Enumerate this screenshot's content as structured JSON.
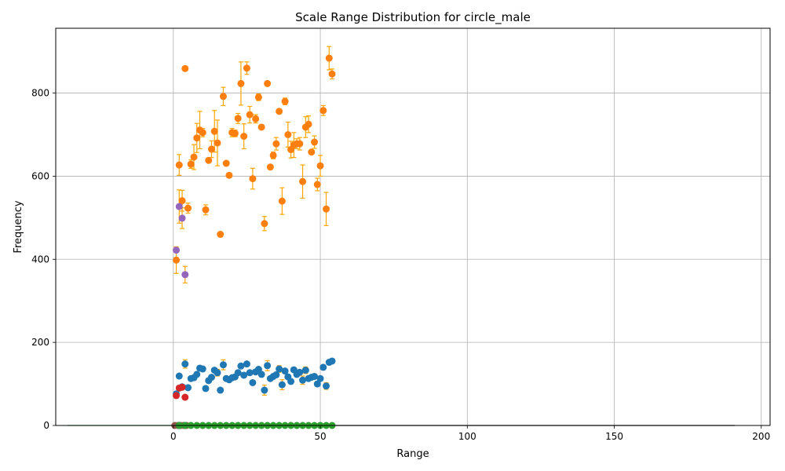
{
  "chart_data": {
    "type": "scatter",
    "title": "Scale Range Distribution for circle_male",
    "xlabel": "Range",
    "ylabel": "Frequency",
    "xlim": [
      -40,
      203
    ],
    "ylim": [
      0,
      956
    ],
    "x_ticks": [
      0,
      50,
      100,
      150,
      200
    ],
    "y_ticks": [
      0,
      200,
      400,
      600,
      800
    ],
    "grid": true,
    "errorbar_color": "#ffa500",
    "series": [
      {
        "color": "#ff7f0e",
        "points": [
          {
            "x": 1,
            "y": 398,
            "err": 32
          },
          {
            "x": 2,
            "y": 627,
            "err": 25
          },
          {
            "x": 3,
            "y": 541,
            "err": 25
          },
          {
            "x": 4,
            "y": 859,
            "err": 0
          },
          {
            "x": 5,
            "y": 523,
            "err": 12
          },
          {
            "x": 6,
            "y": 629,
            "err": 10
          },
          {
            "x": 7,
            "y": 646,
            "err": 30
          },
          {
            "x": 8,
            "y": 692,
            "err": 35
          },
          {
            "x": 9,
            "y": 711,
            "err": 45
          },
          {
            "x": 10,
            "y": 705,
            "err": 10
          },
          {
            "x": 11,
            "y": 519,
            "err": 12
          },
          {
            "x": 12,
            "y": 638,
            "err": 5
          },
          {
            "x": 13,
            "y": 665,
            "err": 20
          },
          {
            "x": 14,
            "y": 708,
            "err": 50
          },
          {
            "x": 15,
            "y": 680,
            "err": 55
          },
          {
            "x": 16,
            "y": 460,
            "err": 0
          },
          {
            "x": 17,
            "y": 792,
            "err": 22
          },
          {
            "x": 18,
            "y": 631,
            "err": 0
          },
          {
            "x": 19,
            "y": 602,
            "err": 0
          },
          {
            "x": 20,
            "y": 705,
            "err": 10
          },
          {
            "x": 21,
            "y": 703,
            "err": 8
          },
          {
            "x": 22,
            "y": 739,
            "err": 12
          },
          {
            "x": 23,
            "y": 823,
            "err": 52
          },
          {
            "x": 24,
            "y": 696,
            "err": 30
          },
          {
            "x": 25,
            "y": 860,
            "err": 15
          },
          {
            "x": 26,
            "y": 748,
            "err": 20
          },
          {
            "x": 27,
            "y": 594,
            "err": 25
          },
          {
            "x": 28,
            "y": 738,
            "err": 10
          },
          {
            "x": 29,
            "y": 790,
            "err": 8
          },
          {
            "x": 30,
            "y": 718,
            "err": 0
          },
          {
            "x": 31,
            "y": 486,
            "err": 17
          },
          {
            "x": 32,
            "y": 823,
            "err": 5
          },
          {
            "x": 33,
            "y": 622,
            "err": 0
          },
          {
            "x": 34,
            "y": 650,
            "err": 8
          },
          {
            "x": 35,
            "y": 678,
            "err": 15
          },
          {
            "x": 36,
            "y": 756,
            "err": 5
          },
          {
            "x": 37,
            "y": 540,
            "err": 32
          },
          {
            "x": 38,
            "y": 780,
            "err": 8
          },
          {
            "x": 39,
            "y": 700,
            "err": 30
          },
          {
            "x": 40,
            "y": 664,
            "err": 20
          },
          {
            "x": 41,
            "y": 675,
            "err": 30
          },
          {
            "x": 42,
            "y": 678,
            "err": 12
          },
          {
            "x": 43,
            "y": 678,
            "err": 15
          },
          {
            "x": 44,
            "y": 587,
            "err": 40
          },
          {
            "x": 45,
            "y": 718,
            "err": 25
          },
          {
            "x": 46,
            "y": 725,
            "err": 20
          },
          {
            "x": 47,
            "y": 658,
            "err": 5
          },
          {
            "x": 48,
            "y": 682,
            "err": 15
          },
          {
            "x": 49,
            "y": 580,
            "err": 15
          },
          {
            "x": 50,
            "y": 625,
            "err": 25
          },
          {
            "x": 51,
            "y": 758,
            "err": 12
          },
          {
            "x": 52,
            "y": 521,
            "err": 40
          },
          {
            "x": 53,
            "y": 884,
            "err": 28
          },
          {
            "x": 54,
            "y": 846,
            "err": 12
          }
        ]
      },
      {
        "color": "#1f77b4",
        "points": [
          {
            "x": 1,
            "y": 76,
            "err": 0
          },
          {
            "x": 2,
            "y": 119,
            "err": 0
          },
          {
            "x": 3,
            "y": 93,
            "err": 0
          },
          {
            "x": 4,
            "y": 148,
            "err": 10
          },
          {
            "x": 5,
            "y": 91,
            "err": 0
          },
          {
            "x": 6,
            "y": 113,
            "err": 0
          },
          {
            "x": 7,
            "y": 115,
            "err": 0
          },
          {
            "x": 8,
            "y": 123,
            "err": 0
          },
          {
            "x": 9,
            "y": 138,
            "err": 0
          },
          {
            "x": 10,
            "y": 136,
            "err": 0
          },
          {
            "x": 11,
            "y": 89,
            "err": 0
          },
          {
            "x": 12,
            "y": 108,
            "err": 0
          },
          {
            "x": 13,
            "y": 116,
            "err": 0
          },
          {
            "x": 14,
            "y": 133,
            "err": 0
          },
          {
            "x": 15,
            "y": 127,
            "err": 8
          },
          {
            "x": 16,
            "y": 85,
            "err": 0
          },
          {
            "x": 17,
            "y": 146,
            "err": 12
          },
          {
            "x": 18,
            "y": 113,
            "err": 0
          },
          {
            "x": 19,
            "y": 110,
            "err": 0
          },
          {
            "x": 20,
            "y": 115,
            "err": 0
          },
          {
            "x": 21,
            "y": 117,
            "err": 0
          },
          {
            "x": 22,
            "y": 127,
            "err": 0
          },
          {
            "x": 23,
            "y": 143,
            "err": 0
          },
          {
            "x": 24,
            "y": 121,
            "err": 0
          },
          {
            "x": 25,
            "y": 148,
            "err": 0
          },
          {
            "x": 26,
            "y": 127,
            "err": 0
          },
          {
            "x": 27,
            "y": 103,
            "err": 0
          },
          {
            "x": 28,
            "y": 129,
            "err": 0
          },
          {
            "x": 29,
            "y": 135,
            "err": 0
          },
          {
            "x": 30,
            "y": 123,
            "err": 0
          },
          {
            "x": 31,
            "y": 85,
            "err": 12
          },
          {
            "x": 32,
            "y": 144,
            "err": 12
          },
          {
            "x": 33,
            "y": 113,
            "err": 0
          },
          {
            "x": 34,
            "y": 118,
            "err": 0
          },
          {
            "x": 35,
            "y": 122,
            "err": 0
          },
          {
            "x": 36,
            "y": 136,
            "err": 8
          },
          {
            "x": 37,
            "y": 98,
            "err": 12
          },
          {
            "x": 38,
            "y": 131,
            "err": 0
          },
          {
            "x": 39,
            "y": 117,
            "err": 0
          },
          {
            "x": 40,
            "y": 106,
            "err": 0
          },
          {
            "x": 41,
            "y": 134,
            "err": 0
          },
          {
            "x": 42,
            "y": 123,
            "err": 0
          },
          {
            "x": 43,
            "y": 128,
            "err": 0
          },
          {
            "x": 44,
            "y": 109,
            "err": 10
          },
          {
            "x": 45,
            "y": 133,
            "err": 8
          },
          {
            "x": 46,
            "y": 113,
            "err": 0
          },
          {
            "x": 47,
            "y": 116,
            "err": 0
          },
          {
            "x": 48,
            "y": 118,
            "err": 0
          },
          {
            "x": 49,
            "y": 100,
            "err": 0
          },
          {
            "x": 50,
            "y": 113,
            "err": 0
          },
          {
            "x": 51,
            "y": 140,
            "err": 0
          },
          {
            "x": 52,
            "y": 95,
            "err": 8
          },
          {
            "x": 53,
            "y": 152,
            "err": 0
          },
          {
            "x": 54,
            "y": 155,
            "err": 0
          }
        ]
      },
      {
        "color": "#9467bd",
        "points": [
          {
            "x": 1,
            "y": 422,
            "err": 0
          },
          {
            "x": 2,
            "y": 527,
            "err": 40
          },
          {
            "x": 3,
            "y": 499,
            "err": 25
          },
          {
            "x": 4,
            "y": 363,
            "err": 20
          }
        ]
      },
      {
        "color": "#d62728",
        "points": [
          {
            "x": 1,
            "y": 72,
            "err": 0
          },
          {
            "x": 2,
            "y": 90,
            "err": 0
          },
          {
            "x": 3,
            "y": 92,
            "err": 0
          },
          {
            "x": 4,
            "y": 68,
            "err": 0
          }
        ]
      },
      {
        "color": "#8c564b",
        "points": [
          {
            "x": 0.5,
            "y": 0,
            "err": 0
          },
          {
            "x": 1.5,
            "y": 0,
            "err": 0
          },
          {
            "x": 2.5,
            "y": 0,
            "err": 0
          },
          {
            "x": 3.5,
            "y": 0,
            "err": 0
          },
          {
            "x": 4.5,
            "y": 0,
            "err": 0
          }
        ]
      },
      {
        "color": "#2ca02c",
        "points": [
          {
            "x": 2,
            "y": 0,
            "err": 0
          },
          {
            "x": 4,
            "y": 0,
            "err": 0
          },
          {
            "x": 6,
            "y": 0,
            "err": 0
          },
          {
            "x": 8,
            "y": 0,
            "err": 0
          },
          {
            "x": 10,
            "y": 0,
            "err": 0
          },
          {
            "x": 12,
            "y": 0,
            "err": 0
          },
          {
            "x": 14,
            "y": 0,
            "err": 0
          },
          {
            "x": 16,
            "y": 0,
            "err": 0
          },
          {
            "x": 18,
            "y": 0,
            "err": 0
          },
          {
            "x": 20,
            "y": 0,
            "err": 0
          },
          {
            "x": 22,
            "y": 0,
            "err": 0
          },
          {
            "x": 24,
            "y": 0,
            "err": 0
          },
          {
            "x": 26,
            "y": 0,
            "err": 0
          },
          {
            "x": 28,
            "y": 0,
            "err": 0
          },
          {
            "x": 30,
            "y": 0,
            "err": 0
          },
          {
            "x": 32,
            "y": 0,
            "err": 0
          },
          {
            "x": 34,
            "y": 0,
            "err": 0
          },
          {
            "x": 36,
            "y": 0,
            "err": 0
          },
          {
            "x": 38,
            "y": 0,
            "err": 0
          },
          {
            "x": 40,
            "y": 0,
            "err": 0
          },
          {
            "x": 42,
            "y": 0,
            "err": 0
          },
          {
            "x": 44,
            "y": 0,
            "err": 0
          },
          {
            "x": 46,
            "y": 0,
            "err": 0
          },
          {
            "x": 48,
            "y": 0,
            "err": 0
          },
          {
            "x": 50,
            "y": 0,
            "err": 0
          },
          {
            "x": 52,
            "y": 0,
            "err": 0
          },
          {
            "x": 54,
            "y": 0,
            "err": 0
          }
        ]
      }
    ],
    "baseline_lines": [
      {
        "color": "#2ca02c",
        "x_start": -36,
        "x_end": 55
      },
      {
        "color": "#1f1f1f",
        "x_start": 50,
        "x_end": 191
      }
    ]
  }
}
